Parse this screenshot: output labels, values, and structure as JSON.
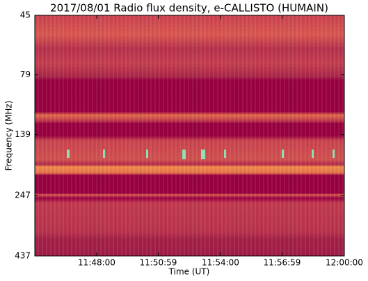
{
  "chart_data": {
    "type": "spectrogram",
    "title": "2017/08/01  Radio flux density, e-CALLISTO (HUMAIN)",
    "x_label": "Time (UT)",
    "y_label": "Frequency (MHz)",
    "xlim": [
      "11:45:00",
      "12:00:00"
    ],
    "xticks": [
      "11:48:00",
      "11:50:59",
      "11:54:00",
      "11:56:59",
      "12:00:00"
    ],
    "ylim": [
      45,
      437
    ],
    "yticks": [
      45,
      79,
      139,
      247,
      437
    ],
    "y_log": true,
    "y_inverted": true
  }
}
